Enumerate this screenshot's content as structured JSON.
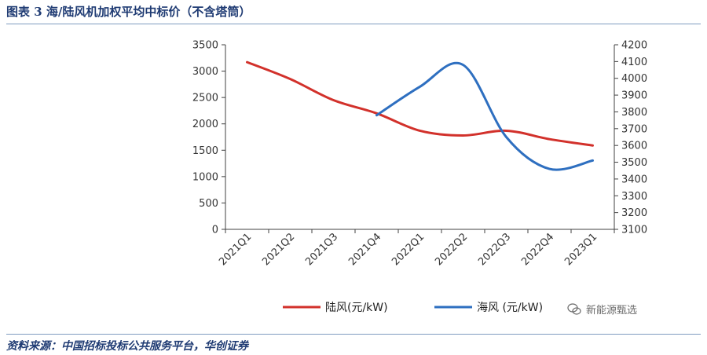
{
  "page": {
    "title": "图表 3  海/陆风机加权平均中标价（不含塔筒）",
    "source": "资料来源：中国招标投标公共服务平台，华创证券",
    "watermark": "新能源甄选"
  },
  "colors": {
    "onshore": "#d2312b",
    "offshore": "#2e6fc0",
    "axis": "#404040",
    "grid": "#bfbfbf",
    "text": "#333333"
  },
  "chart_data": {
    "type": "line",
    "categories": [
      "2021Q1",
      "2021Q2",
      "2021Q3",
      "2021Q4",
      "2022Q1",
      "2022Q2",
      "2022Q3",
      "2022Q4",
      "2023Q1"
    ],
    "y_left": {
      "min": 0,
      "max": 3500,
      "step": 500,
      "ticks": [
        "0",
        "500",
        "1000",
        "1500",
        "2000",
        "2500",
        "3000",
        "3500"
      ]
    },
    "y_right": {
      "min": 3100,
      "max": 4200,
      "step": 100,
      "ticks": [
        "3100",
        "3200",
        "3300",
        "3400",
        "3500",
        "3600",
        "3700",
        "3800",
        "3900",
        "4000",
        "4100",
        "4200"
      ]
    },
    "series": [
      {
        "name": "陆风(元/kW)",
        "axis": "left",
        "x": [
          0,
          1,
          2,
          3,
          4,
          5,
          6,
          7,
          8
        ],
        "values": [
          3170,
          2850,
          2450,
          2200,
          1870,
          1780,
          1870,
          1710,
          1590
        ]
      },
      {
        "name": "海风  (元/kW)",
        "axis": "right",
        "x": [
          3,
          4,
          5,
          6,
          7,
          8
        ],
        "values": [
          3780,
          3950,
          4080,
          3650,
          3460,
          3510
        ]
      }
    ],
    "legend_position": "bottom",
    "grid": false
  }
}
